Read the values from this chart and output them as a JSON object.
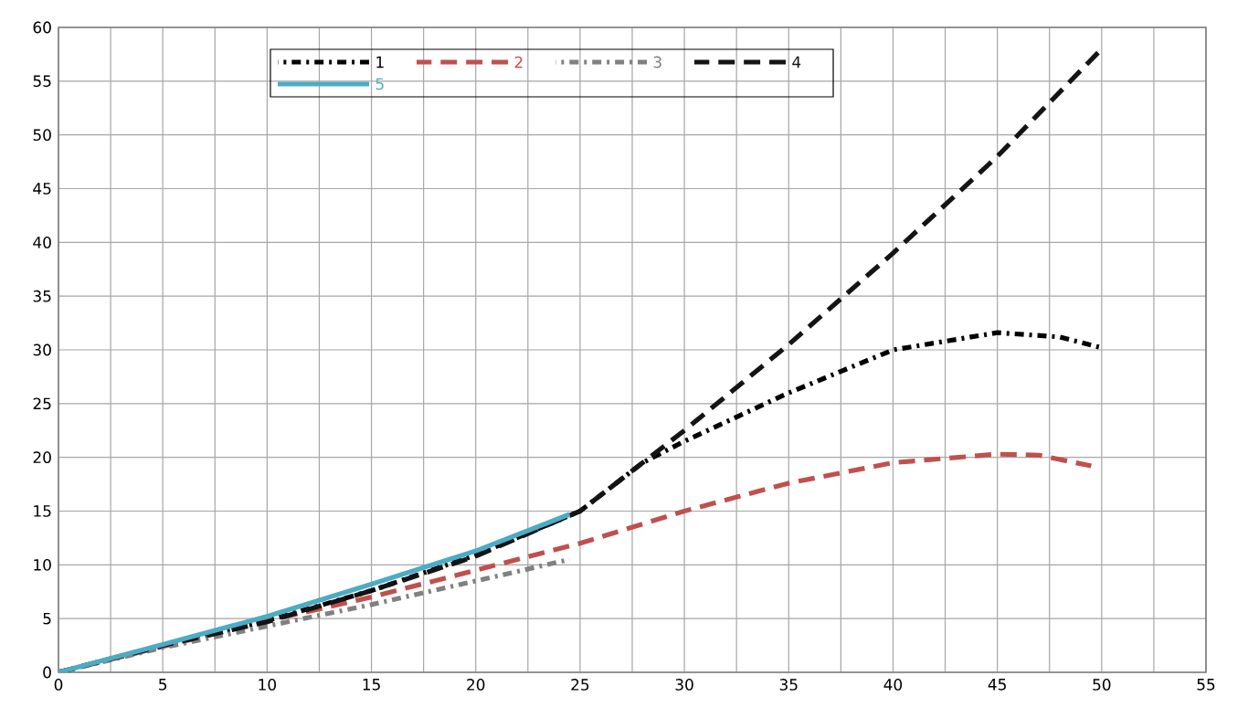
{
  "chart_data": {
    "type": "line",
    "xlim": [
      0,
      55
    ],
    "ylim": [
      0,
      60
    ],
    "xticks": [
      0,
      {
        "value": 2.5,
        "label": null
      },
      5,
      {
        "value": 7.5,
        "label": null
      },
      10,
      {
        "value": 12.5,
        "label": null
      },
      15,
      {
        "value": 17.5,
        "label": null
      },
      20,
      {
        "value": 22.5,
        "label": null
      },
      25,
      {
        "value": 27.5,
        "label": null
      },
      30,
      {
        "value": 32.5,
        "label": null
      },
      35,
      {
        "value": 37.5,
        "label": null
      },
      40,
      {
        "value": 42.5,
        "label": null
      },
      45,
      {
        "value": 47.5,
        "label": null
      },
      50,
      {
        "value": 52.5,
        "label": null
      },
      55
    ],
    "yticks": [
      0,
      5,
      10,
      15,
      20,
      25,
      30,
      35,
      40,
      45,
      50,
      55,
      60
    ],
    "grid": true,
    "legend": "top",
    "marker": "none",
    "series": [
      {
        "name": "1",
        "color": "#000000",
        "line_style": "dashdot",
        "x": [
          0,
          5,
          10,
          15,
          20,
          25,
          28,
          30,
          35,
          40,
          45,
          48,
          50
        ],
        "values": [
          0,
          2.5,
          4.8,
          7.6,
          10.9,
          15,
          19.5,
          21.5,
          26,
          30,
          31.6,
          31.2,
          30.2
        ]
      },
      {
        "name": "2",
        "color": "#c0504d",
        "line_style": "dashed",
        "x": [
          0,
          5,
          10,
          15,
          20,
          25,
          30,
          35,
          40,
          45,
          47,
          49.5
        ],
        "values": [
          0,
          2.4,
          4.8,
          7,
          9.5,
          12,
          15,
          17.6,
          19.5,
          20.3,
          20.2,
          19.2
        ]
      },
      {
        "name": "3",
        "color": "#808080",
        "line_style": "dashdot",
        "x": [
          0,
          5,
          10,
          15,
          20,
          24.5
        ],
        "values": [
          0,
          2.3,
          4.3,
          6.3,
          8.5,
          10.5
        ]
      },
      {
        "name": "4",
        "color": "#141414",
        "line_style": "dashed",
        "x": [
          0,
          5,
          10,
          15,
          20,
          25,
          30,
          35,
          40,
          45,
          50
        ],
        "values": [
          0,
          2.5,
          4.7,
          7.6,
          10.8,
          15,
          22.5,
          30.5,
          39,
          48,
          58
        ]
      },
      {
        "name": "5",
        "color": "#4bacc6",
        "line_style": "solid",
        "x": [
          0,
          5,
          10,
          15,
          20,
          24.5
        ],
        "values": [
          0,
          2.6,
          5.2,
          8.2,
          11.3,
          14.7
        ]
      }
    ]
  }
}
